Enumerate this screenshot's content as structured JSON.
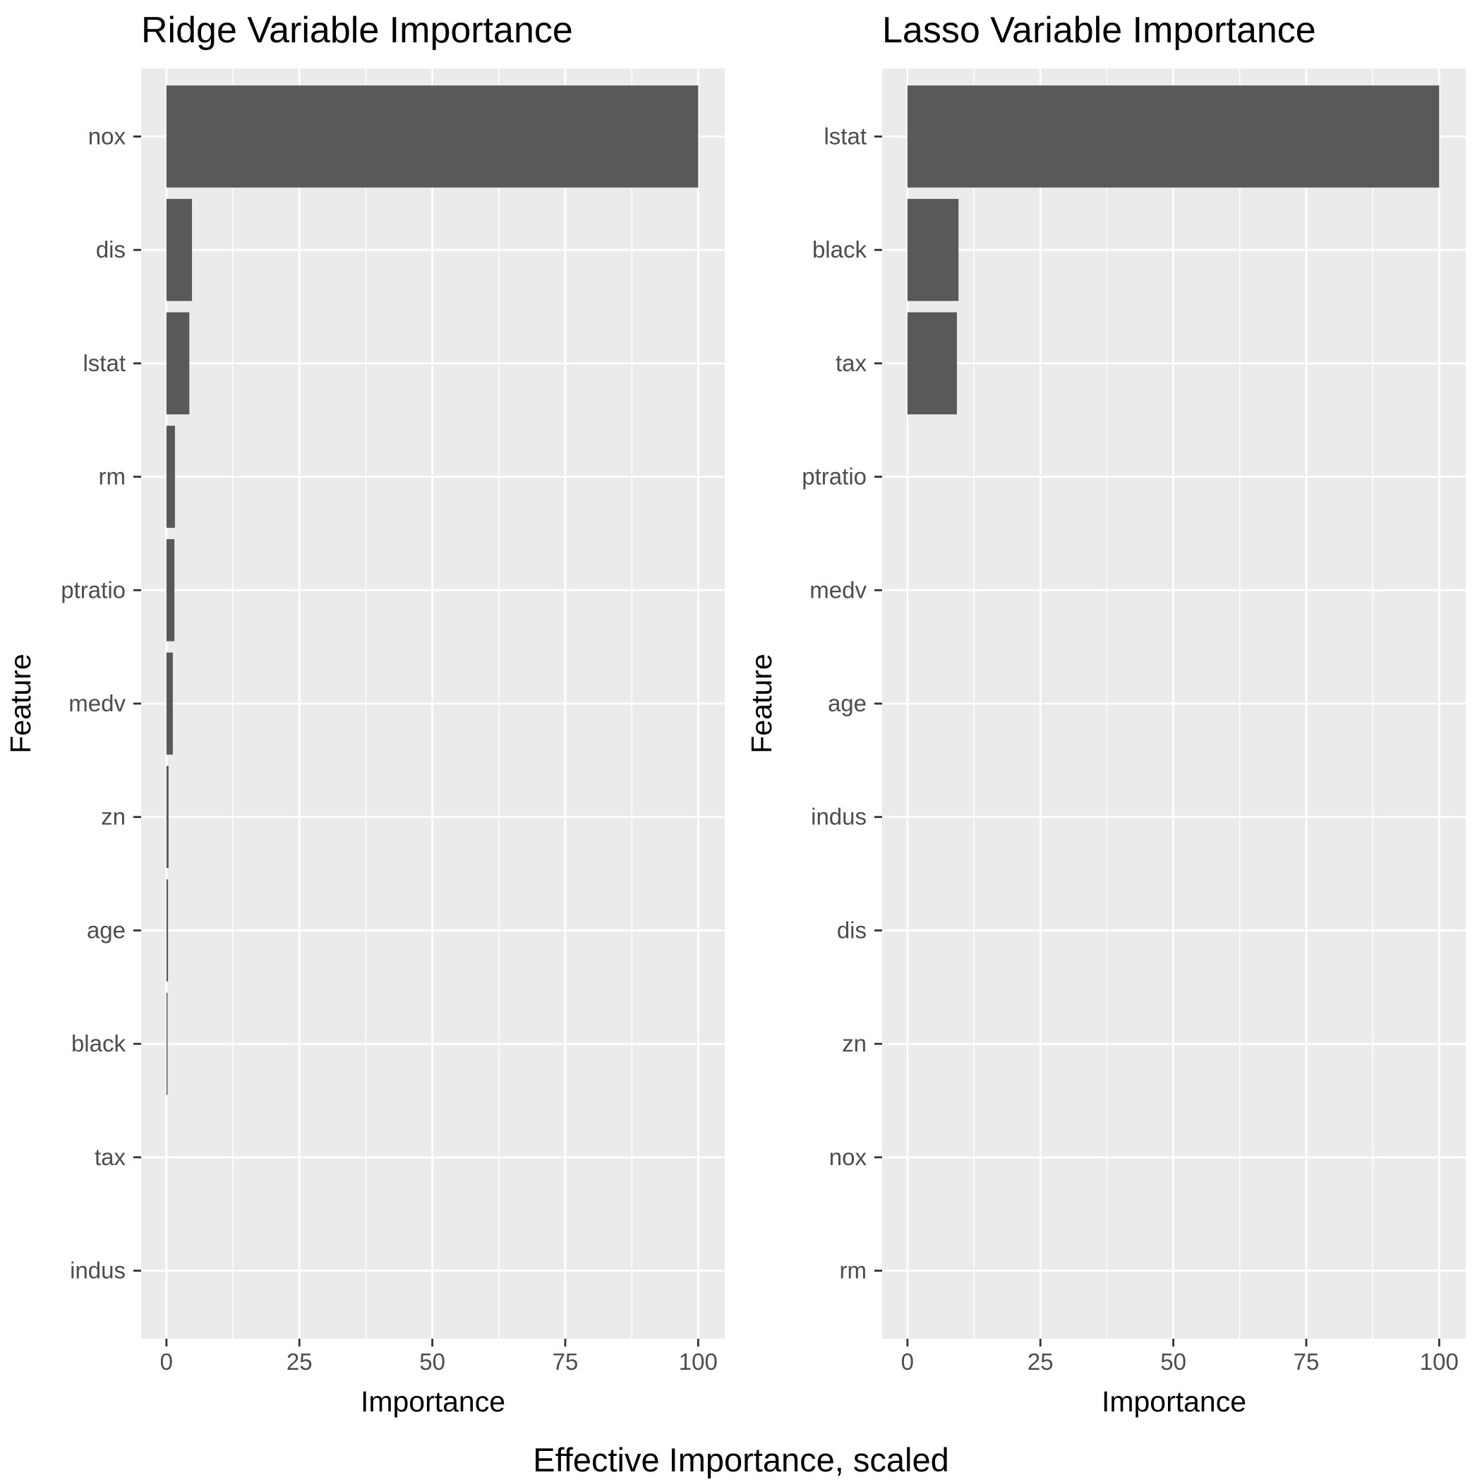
{
  "caption": "Effective Importance, scaled",
  "colors": {
    "panel_background": "#ebebeb",
    "grid": "#ffffff",
    "bar": "#595959",
    "tick_text": "#4d4d4d",
    "tick_mark": "#333333"
  },
  "chart_data": [
    {
      "type": "bar",
      "orientation": "horizontal",
      "title": "Ridge Variable Importance",
      "xlabel": "Importance",
      "ylabel": "Feature",
      "xlim": [
        -4.76,
        105
      ],
      "xticks": [
        0,
        25,
        50,
        75,
        100
      ],
      "grid": true,
      "categories": [
        "nox",
        "dis",
        "lstat",
        "rm",
        "ptratio",
        "medv",
        "zn",
        "age",
        "black",
        "tax",
        "indus"
      ],
      "values": [
        100,
        4.8,
        4.3,
        1.6,
        1.5,
        1.2,
        0.4,
        0.3,
        0.2,
        0,
        0
      ]
    },
    {
      "type": "bar",
      "orientation": "horizontal",
      "title": "Lasso Variable Importance",
      "xlabel": "Importance",
      "ylabel": "Feature",
      "xlim": [
        -4.76,
        105
      ],
      "xticks": [
        0,
        25,
        50,
        75,
        100
      ],
      "grid": true,
      "categories": [
        "lstat",
        "black",
        "tax",
        "ptratio",
        "medv",
        "age",
        "indus",
        "dis",
        "zn",
        "nox",
        "rm"
      ],
      "values": [
        100,
        9.6,
        9.3,
        0,
        0,
        0,
        0,
        0,
        0,
        0,
        0
      ]
    }
  ]
}
